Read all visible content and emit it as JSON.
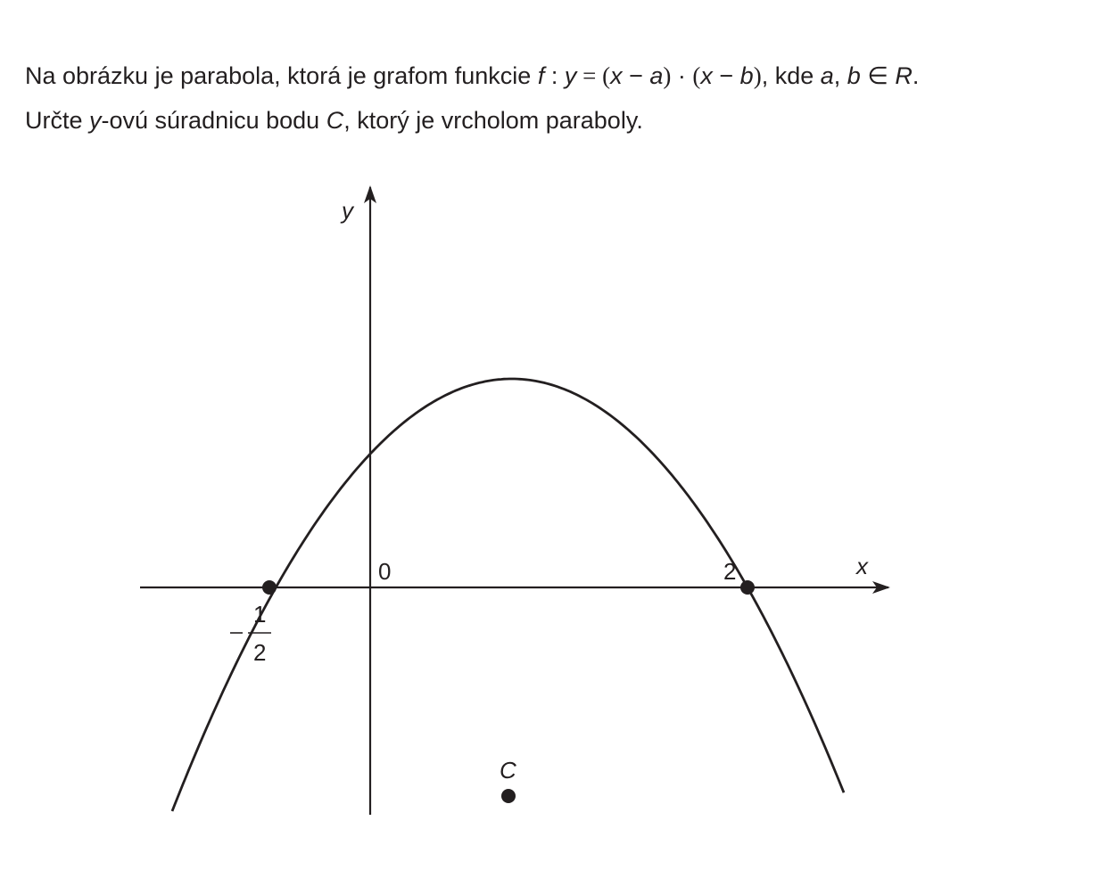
{
  "problem": {
    "line1_prefix": "Na obrázku je parabola, ktorá je grafom funkcie ",
    "f": "f",
    "colon": " : ",
    "y": "y",
    "eq": " = ",
    "paren_open": "(",
    "x": "x",
    "minus": " − ",
    "a": "a",
    "paren_close": ")",
    "dot": " · ",
    "b": "b",
    "line1_suffix": ", kde ",
    "in": " ∈ ",
    "R": "R",
    "period": ".",
    "comma": ", ",
    "line2_prefix": "Určte ",
    "line2_y": "y",
    "line2_mid": "-ovú súradnicu bodu ",
    "line2_C": "C",
    "line2_suffix": ", ktorý je vrcholom paraboly."
  },
  "diagram": {
    "x_axis_label": "x",
    "y_axis_label": "y",
    "origin_label": "0",
    "root_left_numerator": "1",
    "root_left_denominator": "2",
    "root_right_label": "2",
    "vertex_label": "C",
    "root_left": -0.5,
    "root_right": 2,
    "curve_color": "#231f20"
  }
}
